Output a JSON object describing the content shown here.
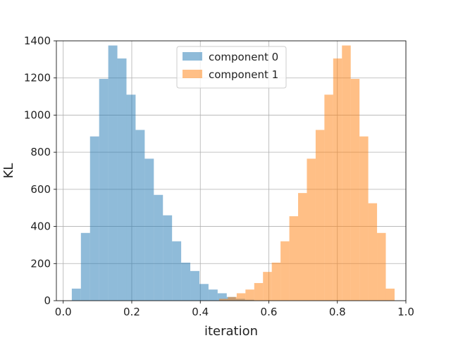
{
  "chart_data": {
    "type": "bar",
    "subtype": "histogram",
    "title": "",
    "xlabel": "iteration",
    "ylabel": "KL",
    "xlim": [
      -0.02,
      1.0
    ],
    "ylim": [
      0,
      1400
    ],
    "xticks": [
      0.0,
      0.2,
      0.4,
      0.6,
      0.8,
      1.0
    ],
    "xtick_labels": [
      "0.0",
      "0.2",
      "0.4",
      "0.6",
      "0.8",
      "1.0"
    ],
    "yticks": [
      0,
      200,
      400,
      600,
      800,
      1000,
      1200,
      1400
    ],
    "ytick_labels": [
      "0",
      "200",
      "400",
      "600",
      "800",
      "1000",
      "1200",
      "1400"
    ],
    "grid": true,
    "legend_position": "top-center",
    "series": [
      {
        "name": "component 0",
        "color": "#1f77b4",
        "alpha": 0.5,
        "bin_edges": [
          0.025,
          0.0516,
          0.0782,
          0.1048,
          0.1314,
          0.158,
          0.1846,
          0.2112,
          0.2378,
          0.2644,
          0.291,
          0.3176,
          0.3442,
          0.3708,
          0.3974,
          0.424,
          0.4506,
          0.4772,
          0.5038,
          0.5304,
          0.557
        ],
        "values": [
          65,
          365,
          885,
          1195,
          1375,
          1305,
          1110,
          920,
          765,
          570,
          460,
          320,
          205,
          160,
          90,
          60,
          40,
          20,
          10,
          5
        ]
      },
      {
        "name": "component 1",
        "color": "#ff7f0e",
        "alpha": 0.5,
        "bin_edges": [
          0.455,
          0.4806,
          0.5062,
          0.5318,
          0.5574,
          0.583,
          0.6086,
          0.6342,
          0.6598,
          0.6854,
          0.711,
          0.7366,
          0.7622,
          0.7878,
          0.8134,
          0.839,
          0.8646,
          0.8902,
          0.9158,
          0.9414,
          0.967
        ],
        "values": [
          10,
          20,
          40,
          60,
          95,
          155,
          205,
          320,
          455,
          580,
          765,
          920,
          1110,
          1305,
          1375,
          1195,
          885,
          525,
          365,
          65
        ]
      }
    ]
  }
}
